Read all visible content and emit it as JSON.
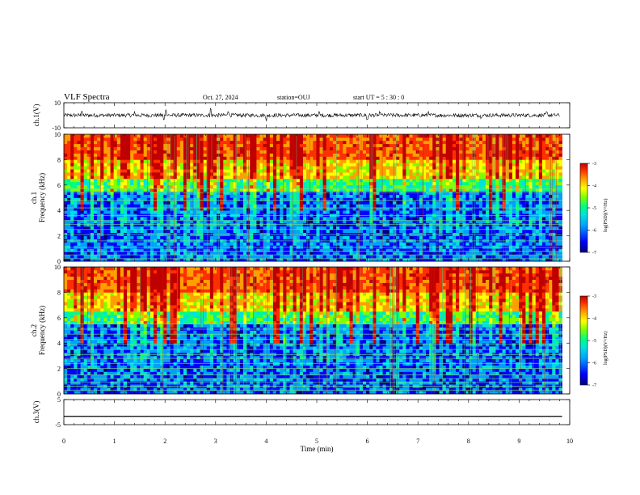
{
  "header": {
    "title": "VLF Spectra",
    "date": "Oct. 27, 2024",
    "station": "station=OUJ",
    "start": "start  UT  =   5  : 30 : 0"
  },
  "colors": {
    "colormap": [
      "#000080",
      "#0000ff",
      "#00a0ff",
      "#00e0e0",
      "#00ff80",
      "#80ff00",
      "#ffff00",
      "#ffa000",
      "#ff3000",
      "#c00000"
    ],
    "trace": "#000000",
    "frame": "#000000"
  },
  "chart_data": [
    {
      "type": "line",
      "ylabel": "ch.1(V)",
      "ylim": [
        -10,
        10
      ],
      "yticks": [
        -10,
        10
      ],
      "xlim": [
        0,
        10
      ],
      "baseline_value": 0,
      "amplitude_note_values": {
        "typical": 1.5,
        "spikes": [
          [
            0.35,
            4
          ],
          [
            1.4,
            3
          ],
          [
            1.98,
            -4
          ],
          [
            2.02,
            5
          ],
          [
            2.9,
            6
          ],
          [
            3.25,
            4
          ],
          [
            4.0,
            -5
          ],
          [
            5.05,
            3
          ],
          [
            6.0,
            -4
          ],
          [
            6.25,
            3
          ],
          [
            7.2,
            3
          ],
          [
            8.25,
            -3
          ],
          [
            9.55,
            3
          ]
        ]
      }
    },
    {
      "type": "heatmap",
      "ylabel": "ch.1\nFrequency  (kHz)",
      "ylim": [
        0,
        10
      ],
      "yticks": [
        0,
        2,
        4,
        6,
        8,
        10
      ],
      "xlim": [
        0,
        10
      ],
      "colorbar": {
        "label": "log(PSD)(V²/Hz)",
        "range": [
          -7,
          -3
        ],
        "ticks": [
          -3,
          -4,
          -5,
          -6,
          -7
        ]
      },
      "lines_khz": [
        0.2,
        0.5,
        0.8,
        1.1,
        1.6,
        2.1,
        2.5,
        2.9,
        3.2,
        3.6,
        4.2,
        4.8,
        5.4,
        5.7
      ]
    },
    {
      "type": "heatmap",
      "ylabel": "ch.2\nFrequency  (kHz)",
      "ylim": [
        0,
        10
      ],
      "yticks": [
        0,
        2,
        4,
        6,
        8,
        10
      ],
      "xlim": [
        0,
        10
      ],
      "colorbar": {
        "label": "log(PSD)(V²/Hz)",
        "range": [
          -7,
          -3
        ],
        "ticks": [
          -3,
          -4,
          -5,
          -6,
          -7
        ]
      },
      "lines_khz": [
        0.3,
        0.6,
        0.9,
        1.2,
        1.5,
        2.0,
        2.4,
        2.8,
        3.1,
        3.5,
        3.9,
        4.3,
        4.7,
        5.1,
        5.5
      ]
    },
    {
      "type": "line",
      "ylabel": "ch.3(V)",
      "ylim": [
        -5,
        5
      ],
      "yticks": [
        -5,
        5
      ],
      "xlim": [
        0,
        10
      ],
      "xlabel": "Time  (min)",
      "xticks": [
        0,
        1,
        2,
        3,
        4,
        5,
        6,
        7,
        8,
        9,
        10
      ],
      "constant_value": -1.7
    }
  ]
}
